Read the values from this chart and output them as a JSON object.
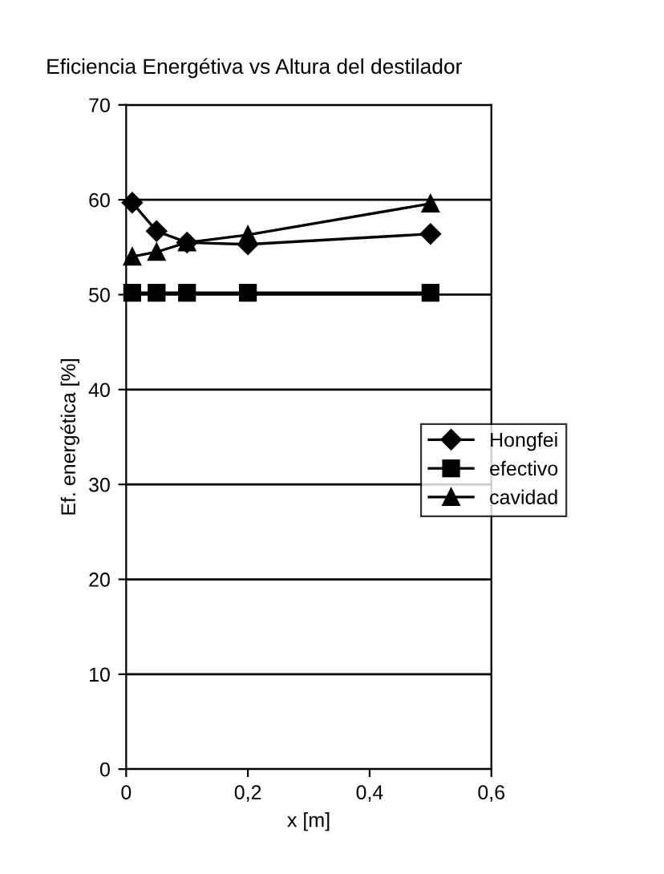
{
  "chart_data": {
    "type": "line",
    "title": "Eficiencia Energétiva vs Altura del destilador",
    "xlabel": "x [m]",
    "ylabel": "Ef. energética [%]",
    "x": [
      0.01,
      0.05,
      0.1,
      0.2,
      0.5
    ],
    "series": [
      {
        "name": "Hongfei",
        "color": "#000000",
        "marker": "diamond",
        "values": [
          59.7,
          56.7,
          55.5,
          55.3,
          56.4
        ]
      },
      {
        "name": "efectivo",
        "color": "#000000",
        "marker": "square",
        "values": [
          50.2,
          50.2,
          50.2,
          50.2,
          50.2
        ]
      },
      {
        "name": "cavidad",
        "color": "#000000",
        "marker": "triangle",
        "values": [
          54.0,
          54.5,
          55.5,
          56.3,
          59.6
        ]
      }
    ],
    "xlim": [
      0,
      0.6
    ],
    "xticks": [
      0,
      {
        "value": 0.2,
        "label": "0,2"
      },
      {
        "value": 0.4,
        "label": "0,4"
      },
      {
        "value": 0.6,
        "label": "0,6"
      }
    ],
    "ylim": [
      0,
      70
    ],
    "yticks": [
      0,
      10,
      20,
      30,
      40,
      50,
      60,
      70
    ],
    "grid": "y",
    "legend": "right",
    "line_style": "solid"
  }
}
